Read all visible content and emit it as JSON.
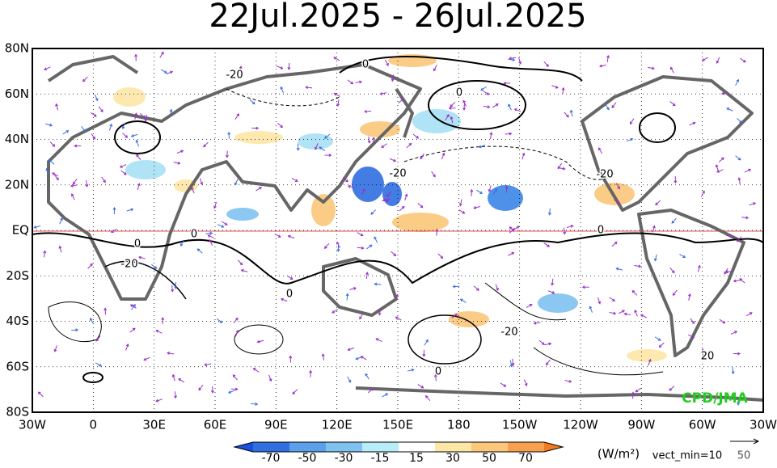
{
  "title": "22Jul.2025 - 26Jul.2025",
  "map": {
    "lat_labels": [
      "80N",
      "60N",
      "40N",
      "20N",
      "EQ",
      "20S",
      "40S",
      "60S",
      "80S"
    ],
    "lon_labels": [
      "30W",
      "0",
      "30E",
      "60E",
      "90E",
      "120E",
      "150E",
      "180",
      "150W",
      "120W",
      "90W",
      "60W",
      "30W"
    ],
    "contour_labels": [
      "0",
      "-20",
      "0",
      "-20",
      "-20",
      "0",
      "0",
      "-20",
      "0",
      "0",
      "-20",
      "0",
      "20"
    ],
    "credit": "CPD/JMA"
  },
  "colorbar": {
    "labels": [
      "-70",
      "-50",
      "-30",
      "-15",
      "15",
      "30",
      "50",
      "70"
    ],
    "unit": "(W/m²)",
    "note": "vect_min=10"
  },
  "reference_vector": "50"
}
